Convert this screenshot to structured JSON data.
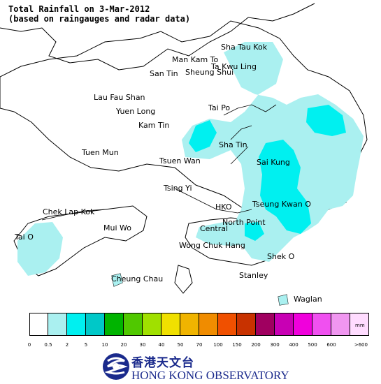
{
  "title": {
    "line1": "Total Rainfall on 3-Mar-2012",
    "line2": "(based on raingauges and radar data)"
  },
  "places": {
    "sha_tau_kok": "Sha Tau Kok",
    "man_kam_to": "Man Kam To",
    "ta_kwu_ling": "Ta Kwu Ling",
    "san_tin": "San Tin",
    "sheung_shui": "Sheung Shui",
    "lau_fau_shan": "Lau Fau Shan",
    "yuen_long": "Yuen Long",
    "tai_po": "Tai Po",
    "kam_tin": "Kam Tin",
    "sha_tin": "Sha Tin",
    "tuen_mun": "Tuen Mun",
    "tsuen_wan": "Tsuen Wan",
    "sai_kung": "Sai Kung",
    "tsing_yi": "Tsing Yi",
    "hko": "HKO",
    "tseung_kwan_o": "Tseung Kwan O",
    "chek_lap_kok": "Chek Lap Kok",
    "central": "Central",
    "north_point": "North Point",
    "mui_wo": "Mui Wo",
    "tai_o": "Tai O",
    "wong_chuk_hang": "Wong Chuk Hang",
    "shek_o": "Shek O",
    "cheung_chau": "Cheung Chau",
    "stanley": "Stanley",
    "waglan": "Waglan"
  },
  "legend": {
    "unit": "mm",
    "colors": [
      "#ffffff",
      "#aaf0f0",
      "#00f0f0",
      "#00c8c8",
      "#00b400",
      "#50c800",
      "#a0e000",
      "#f0e000",
      "#f0b400",
      "#f08c00",
      "#f05000",
      "#c83200",
      "#a00060",
      "#c800b4",
      "#f000dc",
      "#f050f0",
      "#f096f0",
      "#ffdcff"
    ],
    "ticks": [
      "0",
      "0.5",
      "2",
      "5",
      "10",
      "20",
      "30",
      "40",
      "50",
      "70",
      "100",
      "150",
      "200",
      "300",
      "400",
      "500",
      "600",
      ">600"
    ]
  },
  "logo": {
    "chinese": "香港天文台",
    "english": "HONG KONG OBSERVATORY"
  }
}
